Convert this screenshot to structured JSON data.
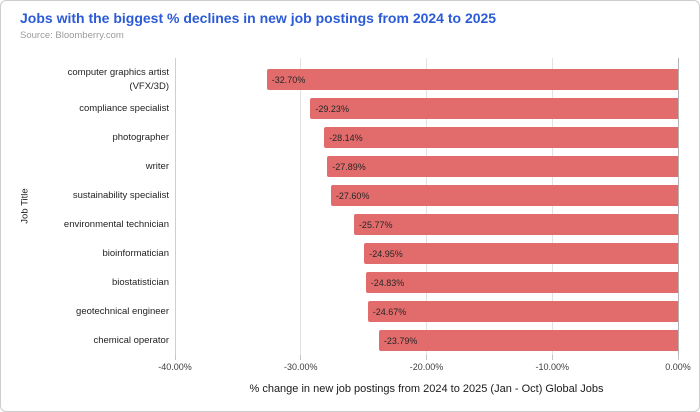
{
  "header": {
    "title": "Jobs with the biggest % declines in new job postings from 2024 to 2025",
    "source": "Source: Bloomberry.com"
  },
  "chart_data": {
    "type": "bar",
    "orientation": "horizontal",
    "title": "Jobs with the biggest % declines in new job postings from 2024 to 2025",
    "categories": [
      "computer graphics artist\n(VFX/3D)",
      "compliance specialist",
      "photographer",
      "writer",
      "sustainability specialist",
      "environmental technician",
      "bioinformatician",
      "biostatistician",
      "geotechnical engineer",
      "chemical operator"
    ],
    "values": [
      -32.7,
      -29.23,
      -28.14,
      -27.89,
      -27.6,
      -25.77,
      -24.95,
      -24.83,
      -24.67,
      -23.79
    ],
    "value_labels": [
      "-32.70%",
      "-29.23%",
      "-28.14%",
      "-27.89%",
      "-27.60%",
      "-25.77%",
      "-24.95%",
      "-24.83%",
      "-24.67%",
      "-23.79%"
    ],
    "xlabel": "% change in new job postings from 2024 to 2025 (Jan - Oct) Global Jobs",
    "ylabel": "Job Title",
    "xlim": [
      -40,
      0
    ],
    "xticks": [
      {
        "value": -40,
        "label": "-40.00%"
      },
      {
        "value": -30,
        "label": "-30.00%"
      },
      {
        "value": -20,
        "label": "-20.00%"
      },
      {
        "value": -10,
        "label": "-10.00%"
      },
      {
        "value": 0,
        "label": "0.00%"
      }
    ],
    "bar_color": "#e26c6c",
    "grid": true,
    "legend": false
  }
}
